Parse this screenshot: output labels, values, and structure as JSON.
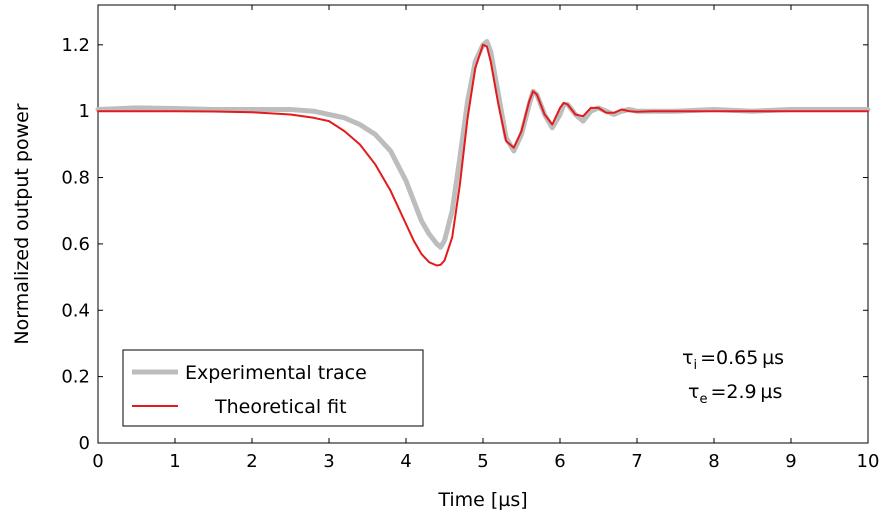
{
  "chart_data": {
    "type": "line",
    "title": "",
    "xlabel": "Time [µs]",
    "ylabel": "Normalized output power",
    "xlim": [
      0,
      10
    ],
    "ylim": [
      0,
      1.32
    ],
    "xticks": [
      0,
      1,
      2,
      3,
      4,
      5,
      6,
      7,
      8,
      9,
      10
    ],
    "yticks": [
      0,
      0.2,
      0.4,
      0.6,
      0.8,
      1,
      1.2
    ],
    "ytick_labels": [
      "0",
      "0.2",
      "0.4",
      "0.6",
      "0.8",
      "1",
      "1.2"
    ],
    "grid": false,
    "legend_position": "bottom-left",
    "series": [
      {
        "name": "Experimental trace",
        "color": "#bdbdbd",
        "x": [
          0,
          0.5,
          1.0,
          1.5,
          2.0,
          2.5,
          2.8,
          3.0,
          3.2,
          3.4,
          3.6,
          3.8,
          4.0,
          4.1,
          4.2,
          4.3,
          4.4,
          4.45,
          4.5,
          4.6,
          4.7,
          4.8,
          4.9,
          5.0,
          5.05,
          5.1,
          5.2,
          5.3,
          5.4,
          5.5,
          5.6,
          5.65,
          5.7,
          5.8,
          5.9,
          6.0,
          6.05,
          6.1,
          6.2,
          6.3,
          6.4,
          6.5,
          6.6,
          6.7,
          6.8,
          6.9,
          7.0,
          7.2,
          7.5,
          8.0,
          8.5,
          9.0,
          9.5,
          10.0
        ],
        "y": [
          1.005,
          1.01,
          1.008,
          1.005,
          1.005,
          1.005,
          1.0,
          0.99,
          0.98,
          0.96,
          0.93,
          0.88,
          0.79,
          0.73,
          0.67,
          0.63,
          0.6,
          0.59,
          0.61,
          0.7,
          0.86,
          1.03,
          1.15,
          1.2,
          1.21,
          1.18,
          1.05,
          0.92,
          0.88,
          0.93,
          1.02,
          1.06,
          1.05,
          0.99,
          0.95,
          0.99,
          1.02,
          1.02,
          0.99,
          0.97,
          1.0,
          1.01,
          1.0,
          0.99,
          1.0,
          1.005,
          1.0,
          1.0,
          1.0,
          1.005,
          1.0,
          1.005,
          1.005,
          1.005
        ]
      },
      {
        "name": "Theoretical fit",
        "color": "#e41a1c",
        "x": [
          0,
          0.5,
          1.0,
          1.5,
          2.0,
          2.5,
          2.8,
          3.0,
          3.2,
          3.4,
          3.6,
          3.8,
          4.0,
          4.1,
          4.2,
          4.3,
          4.4,
          4.45,
          4.5,
          4.6,
          4.7,
          4.8,
          4.9,
          5.0,
          5.05,
          5.1,
          5.2,
          5.3,
          5.4,
          5.5,
          5.6,
          5.65,
          5.7,
          5.8,
          5.9,
          6.0,
          6.05,
          6.1,
          6.2,
          6.3,
          6.4,
          6.5,
          6.6,
          6.7,
          6.8,
          6.9,
          7.0,
          7.2,
          7.5,
          8.0,
          8.5,
          9.0,
          9.5,
          10.0
        ],
        "y": [
          1.0,
          1.0,
          1.0,
          0.999,
          0.997,
          0.99,
          0.98,
          0.97,
          0.94,
          0.9,
          0.84,
          0.76,
          0.66,
          0.61,
          0.57,
          0.545,
          0.535,
          0.537,
          0.55,
          0.62,
          0.78,
          0.98,
          1.13,
          1.2,
          1.195,
          1.15,
          1.02,
          0.91,
          0.89,
          0.94,
          1.03,
          1.06,
          1.05,
          0.99,
          0.96,
          1.01,
          1.025,
          1.02,
          0.99,
          0.985,
          1.01,
          1.01,
          0.995,
          0.995,
          1.005,
          1.0,
          0.998,
          1.0,
          1.0,
          1.0,
          1.0,
          1.0,
          1.0,
          1.0
        ]
      }
    ],
    "annotations": [
      {
        "symbol": "τ",
        "subscript": "i",
        "value": "=0.65 µs"
      },
      {
        "symbol": "τ",
        "subscript": "e",
        "value": "=2.9 µs"
      }
    ]
  }
}
